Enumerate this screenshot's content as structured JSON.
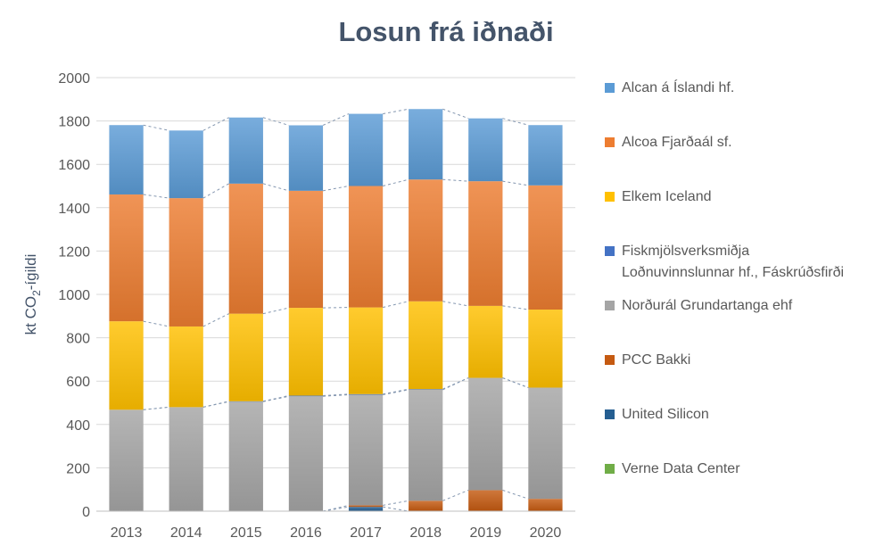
{
  "chart_data": {
    "type": "bar",
    "stacked": true,
    "title": "Losun frá iðnaði",
    "ylabel": "kt CO₂-ígildi",
    "ylabel_main": "kt CO",
    "ylabel_sub": "2",
    "ylabel_suffix": "-ígildi",
    "xlabel": "",
    "ylim": [
      0,
      2000
    ],
    "yticks": [
      0,
      200,
      400,
      600,
      800,
      1000,
      1200,
      1400,
      1600,
      1800,
      2000
    ],
    "grid": true,
    "legend_position": "right",
    "categories": [
      "2013",
      "2014",
      "2015",
      "2016",
      "2017",
      "2018",
      "2019",
      "2020"
    ],
    "series": [
      {
        "name": "Verne Data Center",
        "color": "#70ad47",
        "values": [
          0,
          0,
          0,
          0,
          0,
          0,
          0,
          0
        ]
      },
      {
        "name": "United Silicon",
        "color": "#255e91",
        "values": [
          0,
          0,
          0,
          0,
          20,
          0,
          0,
          0
        ]
      },
      {
        "name": "PCC Bakki",
        "color": "#c55a11",
        "values": [
          0,
          0,
          0,
          0,
          7,
          48,
          97,
          57
        ]
      },
      {
        "name": "Norðurál Grundartanga ehf",
        "color": "#a5a5a5",
        "values": [
          468,
          480,
          505,
          530,
          510,
          512,
          518,
          513
        ]
      },
      {
        "name": "Fiskmjölsverksmiðja Loðnuvinnslunnar hf., Fáskrúðsfirði",
        "color": "#4472c4",
        "values": [
          0,
          0,
          2,
          3,
          3,
          3,
          0,
          0
        ]
      },
      {
        "name": "Elkem Iceland",
        "color": "#ffc000",
        "values": [
          408,
          372,
          404,
          405,
          400,
          405,
          332,
          360
        ]
      },
      {
        "name": "Alcoa Fjarðaál sf.",
        "color": "#ed7d31",
        "values": [
          585,
          592,
          600,
          540,
          560,
          562,
          575,
          573
        ]
      },
      {
        "name": "Alcan á Íslandi hf.",
        "color": "#5b9bd5",
        "values": [
          320,
          312,
          305,
          302,
          333,
          325,
          290,
          278
        ]
      }
    ]
  },
  "legend": {
    "items": [
      {
        "lines": [
          "Alcan á Íslandi hf."
        ],
        "color": "#5b9bd5"
      },
      {
        "lines": [
          "Alcoa Fjarðaál sf."
        ],
        "color": "#ed7d31"
      },
      {
        "lines": [
          "Elkem Iceland"
        ],
        "color": "#ffc000"
      },
      {
        "lines": [
          "Fiskmjölsverksmiðja",
          "Loðnuvinnslunnar hf., Fáskrúðsfirði"
        ],
        "color": "#4472c4"
      },
      {
        "lines": [
          "Norðurál Grundartanga ehf"
        ],
        "color": "#a5a5a5"
      },
      {
        "lines": [
          "PCC Bakki"
        ],
        "color": "#c55a11"
      },
      {
        "lines": [
          "United Silicon"
        ],
        "color": "#255e91"
      },
      {
        "lines": [
          "Verne Data Center"
        ],
        "color": "#70ad47"
      }
    ]
  }
}
